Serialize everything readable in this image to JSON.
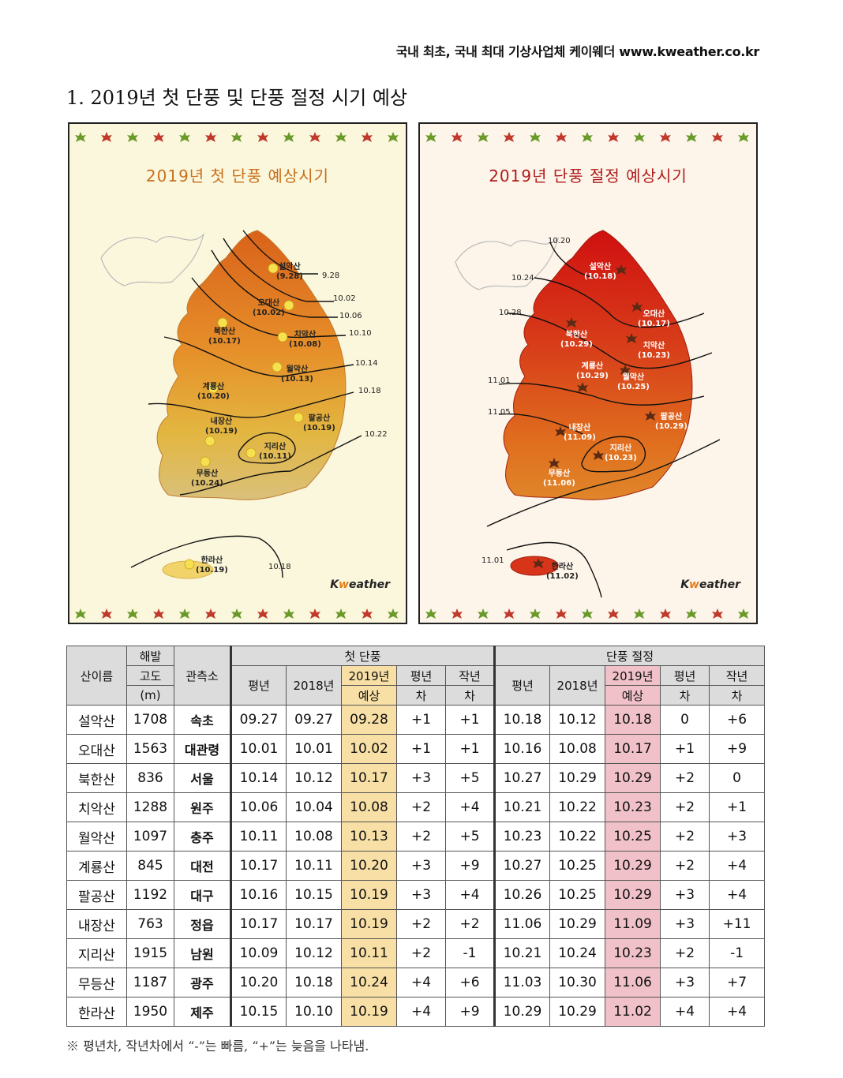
{
  "header": {
    "tagline": "국내 최초, 국내 최대 기상사업체 케이웨더 www.kweather.co.kr"
  },
  "section_title": "1. 2019년 첫 단풍 및 단풍 절정 시기 예상",
  "colors": {
    "first_panel_bg": "#fbf7dc",
    "peak_panel_bg": "#fdf5ea",
    "first_highlight": "#f7dfa5",
    "peak_highlight": "#f0c1c8",
    "leaf_green": "#6a9a2a",
    "leaf_red": "#c0392b"
  },
  "first_map": {
    "title": "2019년 첫 단풍 예상시기",
    "brand_pre": "K",
    "brand_e": "w",
    "brand_post": "eather",
    "mountains": [
      {
        "name": "설악산",
        "date": "(9.28)"
      },
      {
        "name": "오대산",
        "date": "(10.02)"
      },
      {
        "name": "북한산",
        "date": "(10.17)"
      },
      {
        "name": "치악산",
        "date": "(10.08)"
      },
      {
        "name": "월악산",
        "date": "(10.13)"
      },
      {
        "name": "계룡산",
        "date": "(10.20)"
      },
      {
        "name": "팔공산",
        "date": "(10.19)"
      },
      {
        "name": "내장산",
        "date": "(10.19)"
      },
      {
        "name": "지리산",
        "date": "(10.11)"
      },
      {
        "name": "무등산",
        "date": "(10.24)"
      },
      {
        "name": "한라산",
        "date": "(10.19)"
      }
    ],
    "isolines": [
      "9.28",
      "10.02",
      "10.06",
      "10.10",
      "10.14",
      "10.18",
      "10.22",
      "10.18"
    ]
  },
  "peak_map": {
    "title": "2019년 단풍 절정 예상시기",
    "brand_pre": "K",
    "brand_e": "w",
    "brand_post": "eather",
    "mountains": [
      {
        "name": "설악산",
        "date": "(10.18)"
      },
      {
        "name": "오대산",
        "date": "(10.17)"
      },
      {
        "name": "북한산",
        "date": "(10.29)"
      },
      {
        "name": "치악산",
        "date": "(10.23)"
      },
      {
        "name": "계룡산",
        "date": "(10.29)"
      },
      {
        "name": "월악산",
        "date": "(10.25)"
      },
      {
        "name": "팔공산",
        "date": "(10.29)"
      },
      {
        "name": "내장산",
        "date": "(11.09)"
      },
      {
        "name": "지리산",
        "date": "(10.23)"
      },
      {
        "name": "무등산",
        "date": "(11.06)"
      },
      {
        "name": "한라산",
        "date": "(11.02)"
      }
    ],
    "isolines": [
      "10.20",
      "10.24",
      "10.28",
      "11.01",
      "11.05",
      "11.01"
    ]
  },
  "table": {
    "headers": {
      "mountain": "산이름",
      "altitude_1": "해발",
      "altitude_2": "고도",
      "altitude_3": "(m)",
      "station": "관측소",
      "first_group": "첫 단풍",
      "peak_group": "단풍 절정",
      "normal": "평년",
      "y2018": "2018년",
      "y2019_1": "2019년",
      "y2019_2": "예상",
      "diff_normal_1": "평년",
      "diff_normal_2": "차",
      "diff_last_1": "작년",
      "diff_last_2": "차"
    },
    "rows": [
      {
        "mountain": "설악산",
        "altitude": "1708",
        "station": "속초",
        "f_normal": "09.27",
        "f_2018": "09.27",
        "f_2019": "09.28",
        "f_dn": "+1",
        "f_dl": "+1",
        "p_normal": "10.18",
        "p_2018": "10.12",
        "p_2019": "10.18",
        "p_dn": "0",
        "p_dl": "+6"
      },
      {
        "mountain": "오대산",
        "altitude": "1563",
        "station": "대관령",
        "f_normal": "10.01",
        "f_2018": "10.01",
        "f_2019": "10.02",
        "f_dn": "+1",
        "f_dl": "+1",
        "p_normal": "10.16",
        "p_2018": "10.08",
        "p_2019": "10.17",
        "p_dn": "+1",
        "p_dl": "+9"
      },
      {
        "mountain": "북한산",
        "altitude": "836",
        "station": "서울",
        "f_normal": "10.14",
        "f_2018": "10.12",
        "f_2019": "10.17",
        "f_dn": "+3",
        "f_dl": "+5",
        "p_normal": "10.27",
        "p_2018": "10.29",
        "p_2019": "10.29",
        "p_dn": "+2",
        "p_dl": "0"
      },
      {
        "mountain": "치악산",
        "altitude": "1288",
        "station": "원주",
        "f_normal": "10.06",
        "f_2018": "10.04",
        "f_2019": "10.08",
        "f_dn": "+2",
        "f_dl": "+4",
        "p_normal": "10.21",
        "p_2018": "10.22",
        "p_2019": "10.23",
        "p_dn": "+2",
        "p_dl": "+1"
      },
      {
        "mountain": "월악산",
        "altitude": "1097",
        "station": "충주",
        "f_normal": "10.11",
        "f_2018": "10.08",
        "f_2019": "10.13",
        "f_dn": "+2",
        "f_dl": "+5",
        "p_normal": "10.23",
        "p_2018": "10.22",
        "p_2019": "10.25",
        "p_dn": "+2",
        "p_dl": "+3"
      },
      {
        "mountain": "계룡산",
        "altitude": "845",
        "station": "대전",
        "f_normal": "10.17",
        "f_2018": "10.11",
        "f_2019": "10.20",
        "f_dn": "+3",
        "f_dl": "+9",
        "p_normal": "10.27",
        "p_2018": "10.25",
        "p_2019": "10.29",
        "p_dn": "+2",
        "p_dl": "+4"
      },
      {
        "mountain": "팔공산",
        "altitude": "1192",
        "station": "대구",
        "f_normal": "10.16",
        "f_2018": "10.15",
        "f_2019": "10.19",
        "f_dn": "+3",
        "f_dl": "+4",
        "p_normal": "10.26",
        "p_2018": "10.25",
        "p_2019": "10.29",
        "p_dn": "+3",
        "p_dl": "+4"
      },
      {
        "mountain": "내장산",
        "altitude": "763",
        "station": "정읍",
        "f_normal": "10.17",
        "f_2018": "10.17",
        "f_2019": "10.19",
        "f_dn": "+2",
        "f_dl": "+2",
        "p_normal": "11.06",
        "p_2018": "10.29",
        "p_2019": "11.09",
        "p_dn": "+3",
        "p_dl": "+11"
      },
      {
        "mountain": "지리산",
        "altitude": "1915",
        "station": "남원",
        "f_normal": "10.09",
        "f_2018": "10.12",
        "f_2019": "10.11",
        "f_dn": "+2",
        "f_dl": "-1",
        "p_normal": "10.21",
        "p_2018": "10.24",
        "p_2019": "10.23",
        "p_dn": "+2",
        "p_dl": "-1"
      },
      {
        "mountain": "무등산",
        "altitude": "1187",
        "station": "광주",
        "f_normal": "10.20",
        "f_2018": "10.18",
        "f_2019": "10.24",
        "f_dn": "+4",
        "f_dl": "+6",
        "p_normal": "11.03",
        "p_2018": "10.30",
        "p_2019": "11.06",
        "p_dn": "+3",
        "p_dl": "+7"
      },
      {
        "mountain": "한라산",
        "altitude": "1950",
        "station": "제주",
        "f_normal": "10.15",
        "f_2018": "10.10",
        "f_2019": "10.19",
        "f_dn": "+4",
        "f_dl": "+9",
        "p_normal": "10.29",
        "p_2018": "10.29",
        "p_2019": "11.02",
        "p_dn": "+4",
        "p_dl": "+4"
      }
    ]
  },
  "note": "※ 평년차, 작년차에서 “-”는 빠름, “+”는 늦음을 나타냄."
}
